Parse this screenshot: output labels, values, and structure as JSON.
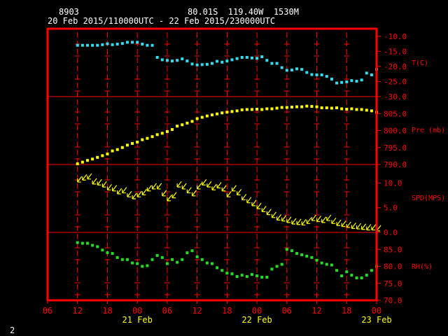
{
  "header": {
    "station": "8903",
    "location": "80.01S  119.40W  1530M",
    "range": "20 Feb 2015/110000UTC - 22 Feb 2015/230000UTC"
  },
  "page_number": "2",
  "colors": {
    "frame": "#ff0000",
    "grid": "#ff0000",
    "labels": "#ff0000",
    "time_labels": "#ffff00",
    "temperature": "#33ddee",
    "pressure": "#ffff00",
    "wind": "#ffff00",
    "humidity": "#22dd22",
    "background": "#000000"
  },
  "chart_data": [
    {
      "type": "scatter",
      "panel": "temperature",
      "ylabel": "T(C)",
      "yticks": [
        "-10.0",
        "-15.0",
        "-20.0",
        "-25.0",
        "-30.0"
      ],
      "ylim": [
        -30,
        -7.5
      ],
      "x": [
        12,
        13,
        14,
        15,
        16,
        17,
        18,
        19,
        20,
        21,
        22,
        23,
        0,
        1,
        2,
        3,
        4,
        5,
        6,
        7,
        8,
        9,
        10,
        11,
        12,
        13,
        14,
        15,
        16,
        17,
        18,
        19,
        20,
        21,
        22,
        23,
        0,
        1,
        2,
        3,
        4,
        5,
        6,
        7,
        8,
        9,
        10,
        11,
        12,
        13,
        14,
        15,
        16,
        17,
        18,
        19,
        20,
        21,
        22,
        23,
        0
      ],
      "y": [
        -13.0,
        -13.0,
        -13.0,
        -13.0,
        -13.0,
        -12.8,
        -12.5,
        -12.8,
        -12.6,
        -12.4,
        -12.0,
        -12.0,
        -12.0,
        -12.6,
        -13.0,
        -13.0,
        -17.0,
        -17.8,
        -18.0,
        -18.2,
        -18.0,
        -17.5,
        -18.2,
        -19.2,
        -19.5,
        -19.4,
        -19.3,
        -19.0,
        -18.3,
        -18.6,
        -18.2,
        -17.8,
        -17.4,
        -17.0,
        -17.0,
        -17.2,
        -17.3,
        -16.8,
        -18.0,
        -19.0,
        -19.0,
        -20.4,
        -21.3,
        -21.2,
        -20.8,
        -21.0,
        -22.0,
        -22.7,
        -22.8,
        -22.8,
        -23.3,
        -24.2,
        -25.5,
        -25.3,
        -25.1,
        -24.7,
        -24.9,
        -24.5,
        -22.2,
        -22.8,
        -21.0
      ]
    },
    {
      "type": "scatter",
      "panel": "pressure",
      "ylabel": "Pre (mb)",
      "yticks": [
        "805.0",
        "800.0",
        "795.0",
        "790.0"
      ],
      "ylim": [
        790,
        810
      ],
      "x": [
        12,
        13,
        14,
        15,
        16,
        17,
        18,
        19,
        20,
        21,
        22,
        23,
        0,
        1,
        2,
        3,
        4,
        5,
        6,
        7,
        8,
        9,
        10,
        11,
        12,
        13,
        14,
        15,
        16,
        17,
        18,
        19,
        20,
        21,
        22,
        23,
        0,
        1,
        2,
        3,
        4,
        5,
        6,
        7,
        8,
        9,
        10,
        11,
        12,
        13,
        14,
        15,
        16,
        17,
        18,
        19,
        20,
        21,
        22,
        23,
        0
      ],
      "y": [
        790.2,
        790.7,
        791.2,
        791.6,
        792.1,
        792.6,
        793.1,
        794.0,
        794.4,
        795.0,
        795.7,
        796.2,
        796.6,
        797.3,
        797.7,
        798.2,
        798.8,
        799.2,
        799.7,
        800.3,
        801.3,
        801.7,
        802.2,
        802.7,
        803.5,
        803.9,
        804.3,
        804.6,
        804.9,
        805.2,
        805.4,
        805.6,
        805.8,
        806.1,
        806.2,
        806.2,
        806.3,
        806.2,
        806.4,
        806.4,
        806.6,
        806.8,
        806.8,
        806.9,
        807.0,
        807.0,
        807.2,
        807.1,
        807.0,
        806.7,
        806.7,
        806.6,
        806.7,
        806.4,
        806.3,
        806.4,
        806.2,
        806.2,
        806.0,
        805.8,
        805.4
      ]
    },
    {
      "type": "scatter",
      "panel": "wind",
      "ylabel": "SPD(MPS)",
      "yticks": [
        "10.0",
        "5.0",
        "0.0"
      ],
      "ylim": [
        0,
        13.75
      ],
      "x": [
        12,
        13,
        14,
        15,
        16,
        17,
        18,
        19,
        20,
        21,
        22,
        23,
        0,
        1,
        2,
        3,
        4,
        5,
        6,
        7,
        8,
        9,
        10,
        11,
        12,
        13,
        14,
        15,
        16,
        17,
        18,
        19,
        20,
        21,
        22,
        23,
        0,
        1,
        2,
        3,
        4,
        5,
        6,
        7,
        8,
        9,
        10,
        11,
        12,
        13,
        14,
        15,
        16,
        17,
        18,
        19,
        20,
        21,
        22,
        23,
        0
      ],
      "y": [
        10.2,
        10.6,
        10.8,
        9.8,
        9.6,
        9.2,
        8.6,
        8.4,
        7.8,
        8.0,
        7.2,
        6.8,
        7.2,
        7.6,
        8.4,
        8.8,
        8.8,
        7.4,
        6.4,
        7.0,
        9.2,
        8.8,
        8.0,
        7.4,
        8.8,
        9.6,
        9.2,
        8.6,
        9.0,
        8.4,
        7.2,
        8.4,
        7.6,
        6.6,
        6.0,
        5.4,
        4.8,
        4.2,
        3.6,
        3.0,
        2.5,
        2.3,
        2.0,
        1.7,
        1.6,
        1.5,
        1.8,
        2.4,
        2.2,
        2.0,
        2.4,
        1.8,
        1.4,
        1.2,
        1.0,
        0.8,
        0.7,
        0.6,
        0.5,
        0.5,
        0.3
      ]
    },
    {
      "type": "scatter",
      "panel": "humidity",
      "ylabel": "RH(%)",
      "yticks": [
        "85.0",
        "80.0",
        "75.0",
        "70.0"
      ],
      "ylim": [
        70,
        90
      ],
      "x": [
        12,
        13,
        14,
        15,
        16,
        17,
        18,
        19,
        20,
        21,
        22,
        23,
        0,
        1,
        2,
        3,
        4,
        5,
        6,
        7,
        8,
        9,
        10,
        11,
        12,
        13,
        14,
        15,
        16,
        17,
        18,
        19,
        20,
        21,
        22,
        23,
        0,
        1,
        2,
        3,
        4,
        5,
        6,
        7,
        8,
        9,
        10,
        11,
        12,
        13,
        14,
        15,
        16,
        17,
        18,
        19,
        20,
        21,
        22,
        23,
        0
      ],
      "y": [
        87.0,
        86.8,
        86.8,
        86.2,
        85.8,
        84.8,
        84.0,
        83.8,
        82.6,
        82.0,
        82.0,
        81.0,
        80.8,
        80.0,
        80.2,
        82.0,
        83.2,
        82.6,
        80.8,
        82.0,
        81.2,
        82.0,
        84.0,
        84.6,
        82.8,
        82.0,
        81.0,
        80.8,
        79.6,
        78.8,
        78.0,
        77.8,
        77.0,
        77.4,
        77.0,
        77.6,
        77.2,
        76.8,
        76.8,
        79.2,
        80.0,
        80.6,
        85.0,
        84.6,
        83.8,
        83.4,
        83.0,
        82.6,
        81.8,
        81.0,
        80.6,
        80.4,
        78.8,
        77.2,
        78.4,
        77.4,
        76.6,
        76.6,
        77.4,
        78.8,
        80.0
      ]
    }
  ],
  "x_axis": {
    "hour_labels": [
      "06",
      "12",
      "18",
      "00",
      "06",
      "12",
      "18",
      "00",
      "06",
      "12",
      "18",
      "00"
    ],
    "date_labels": [
      "21 Feb",
      "22 Feb",
      "23 Feb"
    ]
  }
}
